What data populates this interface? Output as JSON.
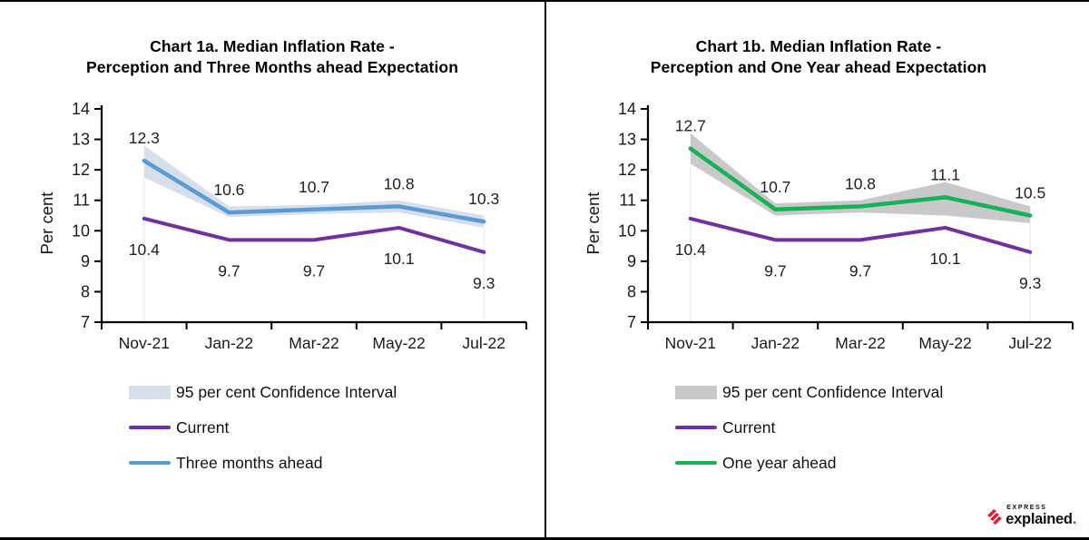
{
  "page": {
    "background": "#ffffff",
    "frame_color": "#000000",
    "label_color": "#1a1a1a"
  },
  "branding": {
    "express": "EXPRESS",
    "explained": "explained",
    "dot": ".",
    "red": "#da2032"
  },
  "chart_data": [
    {
      "type": "line",
      "title_lines": [
        "Chart 1a. Median Inflation Rate -",
        "Perception and Three Months ahead Expectation"
      ],
      "ylabel": "Per cent",
      "ylim": [
        7,
        14
      ],
      "ytick_interval": 1,
      "grid": false,
      "legend_position": "bottom-left",
      "categories": [
        "Nov-21",
        "Jan-22",
        "Mar-22",
        "May-22",
        "Jul-22"
      ],
      "series": [
        {
          "name": "Current",
          "color": "#7030A0",
          "values": [
            10.4,
            9.7,
            9.7,
            10.1,
            9.3
          ],
          "label_position": "below"
        },
        {
          "name": "Three months ahead",
          "color": "#5B9BD5",
          "values": [
            12.3,
            10.6,
            10.7,
            10.8,
            10.3
          ],
          "label_position": "above"
        }
      ],
      "confidence_interval": {
        "name": "95 per cent Confidence Interval",
        "color": "#D8DFEC",
        "upper": [
          12.8,
          10.8,
          10.85,
          11.0,
          10.5
        ],
        "lower": [
          11.75,
          10.45,
          10.55,
          10.6,
          10.1
        ]
      }
    },
    {
      "type": "line",
      "title_lines": [
        "Chart 1b. Median Inflation Rate -",
        "Perception and One Year ahead Expectation"
      ],
      "ylabel": "Per cent",
      "ylim": [
        7,
        14
      ],
      "ytick_interval": 1,
      "grid": false,
      "legend_position": "bottom-left",
      "categories": [
        "Nov-21",
        "Jan-22",
        "Mar-22",
        "May-22",
        "Jul-22"
      ],
      "series": [
        {
          "name": "Current",
          "color": "#7030A0",
          "values": [
            10.4,
            9.7,
            9.7,
            10.1,
            9.3
          ],
          "label_position": "below"
        },
        {
          "name": "One year ahead",
          "color": "#17B257",
          "values": [
            12.7,
            10.7,
            10.8,
            11.1,
            10.5
          ],
          "label_position": "above"
        }
      ],
      "confidence_interval": {
        "name": "95 per cent Confidence Interval",
        "color": "#C9C9C9",
        "upper": [
          13.2,
          10.9,
          11.0,
          11.6,
          10.8
        ],
        "lower": [
          12.2,
          10.5,
          10.6,
          10.5,
          10.25
        ]
      }
    }
  ]
}
